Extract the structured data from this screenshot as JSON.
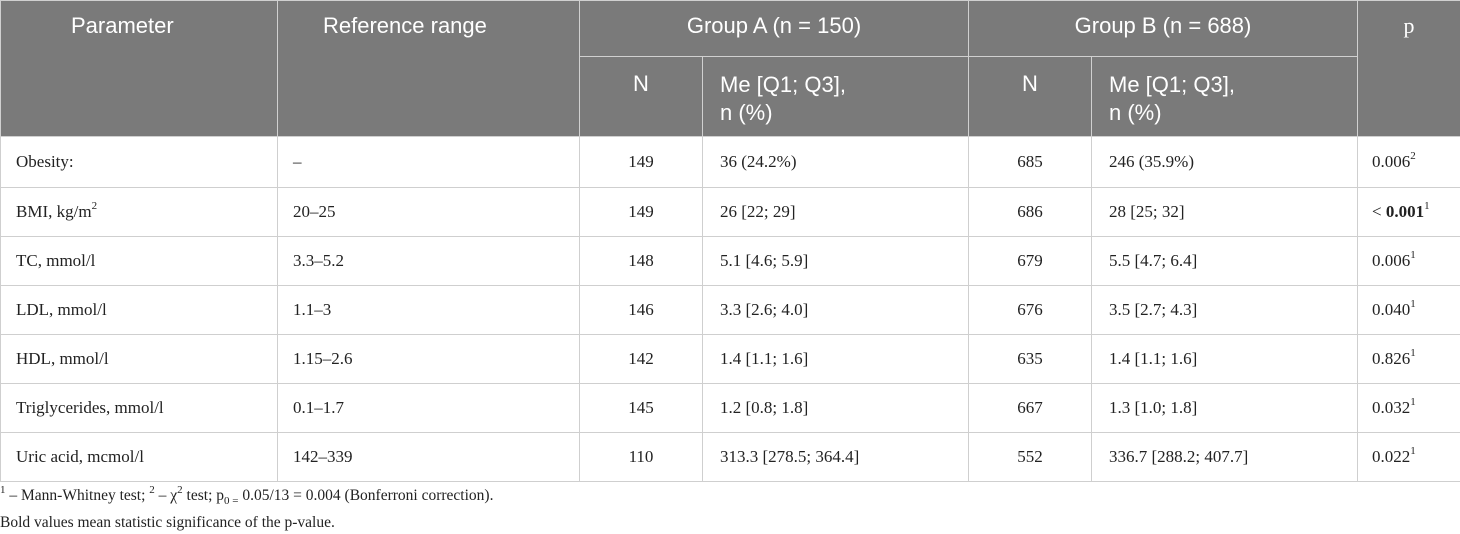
{
  "table": {
    "headers": {
      "parameter": "Parameter",
      "reference_range": "Reference range",
      "group_a": "Group A (n = 150)",
      "group_b": "Group B (n = 688)",
      "p": "p",
      "sub_n": "N",
      "sub_me_line1": "Me [Q1; Q3],",
      "sub_me_line2": "n (%)"
    },
    "rows": [
      {
        "parameter": "Obesity:",
        "parameter_sup": "",
        "reference": "–",
        "a_n": "149",
        "a_value": "36 (24.2%)",
        "b_n": "685",
        "b_value": "246 (35.9%)",
        "p": "0.006",
        "p_prefix": "",
        "p_sup": "2",
        "p_bold": false
      },
      {
        "parameter": "BMI, kg/m",
        "parameter_sup": "2",
        "reference": "20–25",
        "a_n": "149",
        "a_value": "26 [22; 29]",
        "b_n": "686",
        "b_value": "28 [25; 32]",
        "p": "0.001",
        "p_prefix": "< ",
        "p_sup": "1",
        "p_bold": true
      },
      {
        "parameter": "TC, mmol/l",
        "parameter_sup": "",
        "reference": "3.3–5.2",
        "a_n": "148",
        "a_value": "5.1 [4.6; 5.9]",
        "b_n": "679",
        "b_value": "5.5 [4.7; 6.4]",
        "p": "0.006",
        "p_prefix": "",
        "p_sup": "1",
        "p_bold": false
      },
      {
        "parameter": "LDL, mmol/l",
        "parameter_sup": "",
        "reference": "1.1–3",
        "a_n": "146",
        "a_value": "3.3 [2.6; 4.0]",
        "b_n": "676",
        "b_value": "3.5 [2.7; 4.3]",
        "p": "0.040",
        "p_prefix": "",
        "p_sup": "1",
        "p_bold": false
      },
      {
        "parameter": "HDL, mmol/l",
        "parameter_sup": "",
        "reference": "1.15–2.6",
        "a_n": "142",
        "a_value": "1.4 [1.1; 1.6]",
        "b_n": "635",
        "b_value": "1.4 [1.1; 1.6]",
        "p": "0.826",
        "p_prefix": "",
        "p_sup": "1",
        "p_bold": false
      },
      {
        "parameter": "Triglycerides, mmol/l",
        "parameter_sup": "",
        "reference": "0.1–1.7",
        "a_n": "145",
        "a_value": "1.2 [0.8; 1.8]",
        "b_n": "667",
        "b_value": "1.3 [1.0; 1.8]",
        "p": "0.032",
        "p_prefix": "",
        "p_sup": "1",
        "p_bold": false
      },
      {
        "parameter": "Uric acid, mcmol/l",
        "parameter_sup": "",
        "reference": "142–339",
        "a_n": "110",
        "a_value": "313.3 [278.5; 364.4]",
        "b_n": "552",
        "b_value": "336.7 [288.2; 407.7]",
        "p": "0.022",
        "p_prefix": "",
        "p_sup": "1",
        "p_bold": false
      }
    ]
  },
  "footnotes": {
    "line1": {
      "sup1": "1",
      "text1": " – Mann-Whitney test; ",
      "sup2": "2",
      "text2": " – χ",
      "sup3": "2",
      "text3": " test; p",
      "sub": "0 =",
      "text4": " 0.05/13 = 0.004 (Bonferroni correction)."
    },
    "line2": "Bold values mean statistic significance of the p-value."
  }
}
